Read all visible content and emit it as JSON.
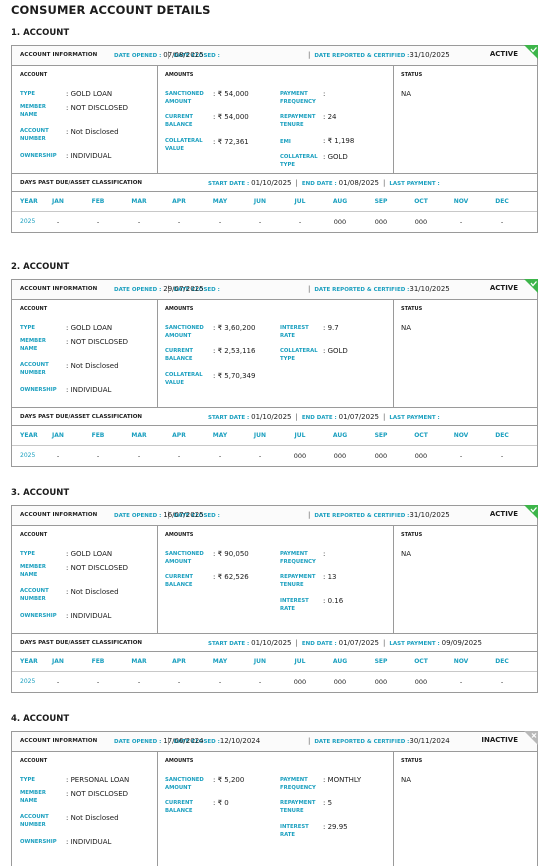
{
  "page_title": "CONSUMER ACCOUNT DETAILS",
  "labels": {
    "account_information": "ACCOUNT INFORMATION",
    "date_opened": "DATE OPENED : ",
    "date_closed": "DATE CLOSED : ",
    "date_reported": "DATE REPORTED & CERTIFIED : ",
    "account_section": "ACCOUNT",
    "amounts_section": "AMOUNTS",
    "status_section": "STATUS",
    "type": "TYPE",
    "member_name": "MEMBER NAME",
    "account_number": "ACCOUNT NUMBER",
    "ownership": "OWNERSHIP",
    "sanctioned_amount": "SANCTIONED AMOUNT",
    "current_balance": "CURRENT BALANCE",
    "collateral_value": "COLLATERAL VALUE",
    "payment_frequency": "PAYMENT FREQUENCY",
    "repayment_tenure": "REPAYMENT TENURE",
    "emi": "EMI",
    "collateral_type": "COLLATERAL TYPE",
    "interest_rate": "INTEREST RATE",
    "dpd_title": "DAYS PAST DUE/ASSET CLASSIFICATION",
    "start_date": "START DATE : ",
    "end_date": "END DATE : ",
    "last_payment": "LAST PAYMENT : ",
    "year": "YEAR",
    "months": [
      "JAN",
      "FEB",
      "MAR",
      "APR",
      "MAY",
      "JUN",
      "JUL",
      "AUG",
      "SEP",
      "OCT",
      "NOV",
      "DEC"
    ]
  },
  "accounts": [
    {
      "heading": "1. ACCOUNT",
      "date_opened": "07/08/2025",
      "date_closed": "",
      "date_reported": "31/10/2025",
      "status_flag": "ACTIVE",
      "type": ": GOLD LOAN",
      "member_name": ": NOT DISCLOSED",
      "account_number": ": Not Disclosed",
      "ownership": ": INDIVIDUAL",
      "sanctioned_amount": ": ₹ 54,000",
      "current_balance": ": ₹ 54,000",
      "collateral_value": ": ₹ 72,361",
      "payment_frequency": ":",
      "repayment_tenure": ": 24",
      "emi": ": ₹ 1,198",
      "collateral_type": ": GOLD",
      "status": "NA",
      "start_date": "01/10/2025",
      "end_date": "01/08/2025",
      "last_payment": "",
      "year": "2025",
      "months": [
        "-",
        "-",
        "-",
        "-",
        "-",
        "-",
        "-",
        "000",
        "000",
        "000",
        "-",
        "-"
      ]
    },
    {
      "heading": "2. ACCOUNT",
      "date_opened": "29/07/2025",
      "date_closed": "",
      "date_reported": "31/10/2025",
      "status_flag": "ACTIVE",
      "type": ": GOLD LOAN",
      "member_name": ": NOT DISCLOSED",
      "account_number": ": Not Disclosed",
      "ownership": ": INDIVIDUAL",
      "sanctioned_amount": ": ₹ 3,60,200",
      "current_balance": ": ₹ 2,53,116",
      "collateral_value": ": ₹ 5,70,349",
      "interest_rate": ": 9.7",
      "collateral_type": ": GOLD",
      "status": "NA",
      "start_date": "01/10/2025",
      "end_date": "01/07/2025",
      "last_payment": "",
      "year": "2025",
      "months": [
        "-",
        "-",
        "-",
        "-",
        "-",
        "-",
        "000",
        "000",
        "000",
        "000",
        "-",
        "-"
      ]
    },
    {
      "heading": "3. ACCOUNT",
      "date_opened": "16/07/2025",
      "date_closed": "",
      "date_reported": "31/10/2025",
      "status_flag": "ACTIVE",
      "type": ": GOLD LOAN",
      "member_name": ": NOT DISCLOSED",
      "account_number": ": Not Disclosed",
      "ownership": ": INDIVIDUAL",
      "sanctioned_amount": ": ₹ 90,050",
      "current_balance": ": ₹ 62,526",
      "payment_frequency": ":",
      "repayment_tenure": ": 13",
      "interest_rate": ": 0.16",
      "status": "NA",
      "start_date": "01/10/2025",
      "end_date": "01/07/2025",
      "last_payment": "09/09/2025",
      "year": "2025",
      "months": [
        "-",
        "-",
        "-",
        "-",
        "-",
        "-",
        "000",
        "000",
        "000",
        "000",
        "-",
        "-"
      ]
    },
    {
      "heading": "4. ACCOUNT",
      "date_opened": "17/06/2024",
      "date_closed": "12/10/2024",
      "date_reported": "30/11/2024",
      "status_flag": "INACTIVE",
      "type": ": PERSONAL LOAN",
      "member_name": ": NOT DISCLOSED",
      "account_number": ": Not Disclosed",
      "ownership": ": INDIVIDUAL",
      "sanctioned_amount": ": ₹ 5,200",
      "current_balance": ": ₹ 0",
      "payment_frequency": ": MONTHLY",
      "repayment_tenure": ": 5",
      "interest_rate": ": 29.95",
      "status": "NA"
    }
  ]
}
